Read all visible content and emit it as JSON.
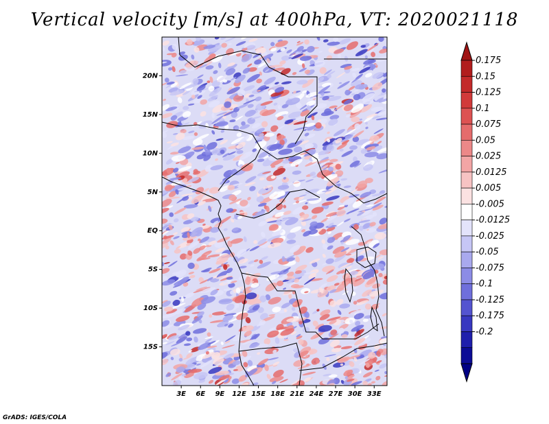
{
  "title": "Vertical velocity [m/s] at 400hPa, VT: 2020021118",
  "credit": "GrADS: IGES/COLA",
  "map": {
    "lon_range": [
      0,
      35
    ],
    "lat_range": [
      -20,
      25
    ],
    "lat_labels": [
      "20N",
      "15N",
      "10N",
      "5N",
      "EQ",
      "5S",
      "10S",
      "15S"
    ],
    "lat_values": [
      20,
      15,
      10,
      5,
      0,
      -5,
      -10,
      -15
    ],
    "lon_labels": [
      "3E",
      "6E",
      "9E",
      "12E",
      "15E",
      "18E",
      "21E",
      "24E",
      "27E",
      "30E",
      "33E"
    ],
    "lon_values": [
      3,
      6,
      9,
      12,
      15,
      18,
      21,
      24,
      27,
      30,
      33
    ]
  },
  "colorbar": {
    "labels": [
      "0.175",
      "0.15",
      "0.125",
      "0.1",
      "0.075",
      "0.05",
      "0.025",
      "0.0125",
      "0.005",
      "-0.005",
      "-0.0125",
      "-0.025",
      "-0.05",
      "-0.075",
      "-0.1",
      "-0.125",
      "-0.175",
      "-0.2"
    ],
    "colors": [
      "#b11d1d",
      "#c32a2a",
      "#d13a3a",
      "#dd5252",
      "#e56c6c",
      "#ec8888",
      "#f2a5a5",
      "#f7c3c3",
      "#fbe2e2",
      "#ffffff",
      "#e3e3fb",
      "#c6c6f5",
      "#a9a9ee",
      "#8c8ce6",
      "#6f6fdc",
      "#5454d0",
      "#3838c0",
      "#1f1fac",
      "#0c0c96"
    ],
    "top_arrow_color": "#a01414",
    "bottom_arrow_color": "#000084"
  }
}
